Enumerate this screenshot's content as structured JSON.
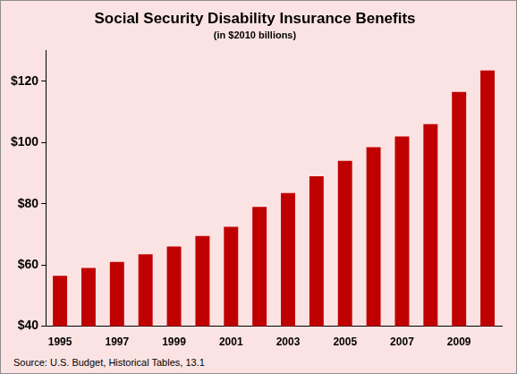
{
  "chart_data": {
    "type": "bar",
    "title": "Social Security Disability Insurance Benefits",
    "subtitle": "(in $2010 billions)",
    "annotations": [
      "Source: U.S. Budget, Historical Tables, 13.1"
    ],
    "categories": [
      "1995",
      null,
      "1997",
      null,
      "1999",
      null,
      "2001",
      null,
      "2003",
      null,
      "2005",
      null,
      "2007",
      null,
      "2009",
      null
    ],
    "values": [
      56.5,
      59,
      61,
      63.5,
      66,
      69.5,
      72.5,
      79,
      83.5,
      89,
      94,
      98.5,
      102,
      106,
      116.5,
      123.5
    ],
    "color": "#c00000",
    "ylim": [
      40,
      130
    ],
    "yticks": [
      {
        "value": 40,
        "label": "$40"
      },
      {
        "value": 60,
        "label": "$60"
      },
      {
        "value": 80,
        "label": "$80"
      },
      {
        "value": 100,
        "label": "$100"
      },
      {
        "value": 120,
        "label": "$120"
      }
    ],
    "grid": false
  }
}
